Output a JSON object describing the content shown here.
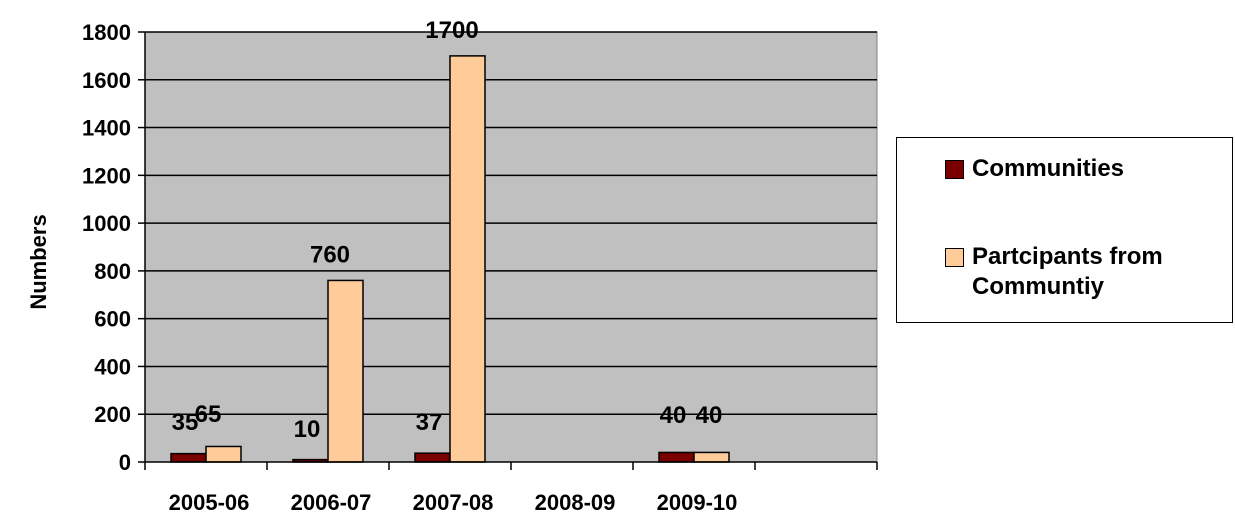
{
  "chart_data": {
    "type": "bar",
    "categories": [
      "2005-06",
      "2006-07",
      "2007-08",
      "2008-09",
      "2009-10",
      ""
    ],
    "series": [
      {
        "name": "Communities",
        "color": "#7a0000",
        "values": [
          35,
          10,
          37,
          null,
          40,
          null
        ],
        "labels": [
          "35",
          "10",
          "37",
          "",
          "40",
          ""
        ]
      },
      {
        "name": "Partcipants from Communtiy",
        "color": "#ffcc99",
        "values": [
          65,
          760,
          1700,
          null,
          40,
          null
        ],
        "labels": [
          "65",
          "760",
          "1700",
          "",
          "40",
          ""
        ]
      }
    ],
    "ylabel": "Numbers",
    "xlabel": "",
    "title": "",
    "ylim": [
      0,
      1800
    ],
    "yticks": [
      0,
      200,
      400,
      600,
      800,
      1000,
      1200,
      1400,
      1600,
      1800
    ],
    "grid": true,
    "plot_background": "#c0c0c0",
    "legend_position": "right"
  }
}
